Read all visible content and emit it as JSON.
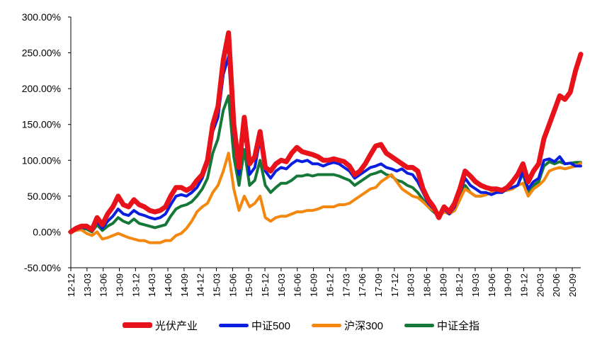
{
  "chart_data": {
    "type": "line",
    "title": "",
    "xlabel": "",
    "ylabel": "",
    "ylim": [
      -50,
      300
    ],
    "yticks": [
      "300.00%",
      "250.00%",
      "200.00%",
      "150.00%",
      "100.00%",
      "50.00%",
      "0.00%",
      "-50.00%"
    ],
    "ytick_values": [
      300,
      250,
      200,
      150,
      100,
      50,
      0,
      -50
    ],
    "xticks": [
      "12-12",
      "13-03",
      "13-06",
      "13-09",
      "13-12",
      "14-03",
      "14-06",
      "14-09",
      "14-12",
      "15-03",
      "15-06",
      "15-09",
      "15-12",
      "16-03",
      "16-06",
      "16-09",
      "16-12",
      "17-03",
      "17-06",
      "17-09",
      "17-12",
      "18-03",
      "18-06",
      "18-09",
      "18-12",
      "19-03",
      "19-06",
      "19-09",
      "19-12",
      "20-03",
      "20-06",
      "20-09"
    ],
    "x": [
      "12-12",
      "13-01",
      "13-02",
      "13-03",
      "13-04",
      "13-05",
      "13-06",
      "13-07",
      "13-08",
      "13-09",
      "13-10",
      "13-11",
      "13-12",
      "14-01",
      "14-02",
      "14-03",
      "14-04",
      "14-05",
      "14-06",
      "14-07",
      "14-08",
      "14-09",
      "14-10",
      "14-11",
      "14-12",
      "15-01",
      "15-02",
      "15-03",
      "15-04",
      "15-05",
      "15-06",
      "15-07",
      "15-08",
      "15-09",
      "15-10",
      "15-11",
      "15-12",
      "16-01",
      "16-02",
      "16-03",
      "16-04",
      "16-05",
      "16-06",
      "16-07",
      "16-08",
      "16-09",
      "16-10",
      "16-11",
      "16-12",
      "17-01",
      "17-02",
      "17-03",
      "17-04",
      "17-05",
      "17-06",
      "17-07",
      "17-08",
      "17-09",
      "17-10",
      "17-11",
      "17-12",
      "18-01",
      "18-02",
      "18-03",
      "18-04",
      "18-05",
      "18-06",
      "18-07",
      "18-08",
      "18-09",
      "18-10",
      "18-11",
      "18-12",
      "19-01",
      "19-02",
      "19-03",
      "19-04",
      "19-05",
      "19-06",
      "19-07",
      "19-08",
      "19-09",
      "19-10",
      "19-11",
      "19-12",
      "20-01",
      "20-02",
      "20-03",
      "20-04",
      "20-05",
      "20-06",
      "20-07",
      "20-08",
      "20-09",
      "20-10",
      "20-11",
      "20-12",
      "21-01"
    ],
    "series": [
      {
        "name": "光伏产业",
        "color": "#e8121b",
        "width": 7,
        "values": [
          0,
          5,
          8,
          8,
          3,
          20,
          10,
          25,
          35,
          50,
          38,
          35,
          45,
          38,
          35,
          30,
          28,
          30,
          35,
          50,
          62,
          62,
          58,
          62,
          72,
          80,
          100,
          150,
          175,
          240,
          278,
          150,
          90,
          160,
          95,
          105,
          140,
          90,
          85,
          95,
          100,
          98,
          110,
          118,
          112,
          110,
          108,
          105,
          100,
          100,
          102,
          100,
          98,
          92,
          80,
          85,
          95,
          108,
          120,
          122,
          110,
          105,
          100,
          95,
          90,
          90,
          85,
          60,
          45,
          35,
          20,
          35,
          28,
          40,
          60,
          85,
          78,
          70,
          65,
          62,
          60,
          60,
          58,
          62,
          70,
          80,
          95,
          70,
          85,
          95,
          130,
          150,
          170,
          190,
          185,
          195,
          225,
          248
        ]
      },
      {
        "name": "中证500",
        "color": "#0a1ee0",
        "width": 4,
        "values": [
          0,
          4,
          6,
          6,
          2,
          15,
          5,
          15,
          22,
          32,
          25,
          23,
          30,
          25,
          23,
          20,
          18,
          20,
          25,
          38,
          50,
          52,
          50,
          55,
          62,
          75,
          95,
          140,
          160,
          220,
          245,
          135,
          80,
          145,
          80,
          90,
          130,
          85,
          75,
          85,
          90,
          88,
          95,
          100,
          98,
          100,
          95,
          95,
          92,
          95,
          97,
          95,
          90,
          85,
          75,
          80,
          85,
          90,
          92,
          95,
          90,
          88,
          85,
          88,
          82,
          80,
          70,
          55,
          40,
          32,
          22,
          32,
          25,
          35,
          55,
          75,
          65,
          60,
          55,
          55,
          52,
          55,
          55,
          60,
          62,
          65,
          85,
          60,
          70,
          75,
          100,
          102,
          98,
          105,
          95,
          96,
          92,
          92
        ]
      },
      {
        "name": "沪深300",
        "color": "#f4880e",
        "width": 4,
        "values": [
          0,
          2,
          3,
          -2,
          -5,
          0,
          -10,
          -8,
          -5,
          -2,
          -5,
          -8,
          -10,
          -12,
          -12,
          -15,
          -15,
          -15,
          -12,
          -12,
          -5,
          -2,
          5,
          15,
          28,
          35,
          40,
          55,
          65,
          85,
          110,
          60,
          30,
          50,
          35,
          40,
          50,
          20,
          15,
          20,
          22,
          22,
          25,
          28,
          28,
          30,
          30,
          32,
          35,
          35,
          35,
          38,
          38,
          40,
          45,
          50,
          55,
          60,
          62,
          70,
          75,
          80,
          70,
          60,
          55,
          50,
          48,
          42,
          35,
          30,
          22,
          28,
          25,
          30,
          45,
          60,
          55,
          50,
          50,
          52,
          55,
          55,
          58,
          58,
          60,
          65,
          68,
          50,
          60,
          65,
          72,
          85,
          88,
          90,
          88,
          90,
          92,
          96
        ]
      },
      {
        "name": "中证全指",
        "color": "#157838",
        "width": 4,
        "values": [
          0,
          3,
          5,
          4,
          0,
          10,
          2,
          8,
          12,
          20,
          15,
          12,
          18,
          12,
          10,
          8,
          6,
          8,
          10,
          22,
          32,
          36,
          38,
          42,
          50,
          60,
          75,
          110,
          130,
          170,
          190,
          105,
          65,
          115,
          65,
          72,
          100,
          65,
          55,
          62,
          68,
          68,
          72,
          78,
          78,
          80,
          78,
          80,
          80,
          80,
          80,
          78,
          75,
          72,
          65,
          70,
          75,
          80,
          82,
          85,
          80,
          78,
          72,
          70,
          65,
          62,
          55,
          45,
          35,
          28,
          22,
          30,
          25,
          30,
          45,
          65,
          55,
          50,
          50,
          52,
          55,
          55,
          58,
          60,
          62,
          65,
          82,
          55,
          65,
          70,
          92,
          98,
          95,
          98,
          95,
          96,
          97,
          97
        ]
      }
    ],
    "legend_position": "bottom",
    "grid": false
  }
}
